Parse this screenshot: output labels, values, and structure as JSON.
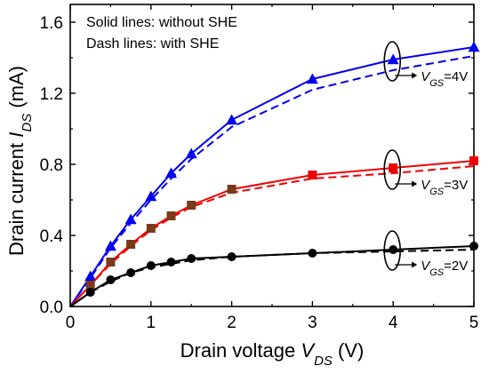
{
  "chart_data": {
    "type": "line",
    "xlabel": {
      "main": "Drain voltage ",
      "var": "V",
      "sub": "DS",
      "unit": " (V)"
    },
    "ylabel": {
      "main": "Drain current ",
      "var": "I",
      "sub": "DS",
      "unit": " (mA)"
    },
    "xlim": [
      0,
      5
    ],
    "ylim": [
      0,
      1.7
    ],
    "xticks": [
      0,
      1,
      2,
      3,
      4,
      5
    ],
    "yticks": [
      0.0,
      0.4,
      0.8,
      1.2,
      1.6
    ],
    "ytick_labels": [
      "0.0",
      "0.4",
      "0.8",
      "1.2",
      "1.6"
    ],
    "legend": [
      "Solid lines: without SHE",
      "Dash lines: with SHE"
    ],
    "series": [
      {
        "group": "VGS=4V",
        "color": "#0000ee",
        "marker": "triangle",
        "without_she": {
          "x": [
            0.25,
            0.5,
            0.75,
            1.0,
            1.25,
            1.5,
            2.0,
            3.0,
            4.0,
            5.0
          ],
          "y": [
            0.17,
            0.34,
            0.49,
            0.62,
            0.75,
            0.86,
            1.05,
            1.28,
            1.39,
            1.46
          ]
        },
        "with_she": {
          "x": [
            0.25,
            0.5,
            0.75,
            1.0,
            1.25,
            1.5,
            2.0,
            3.0,
            4.0,
            5.0
          ],
          "y": [
            0.16,
            0.33,
            0.47,
            0.6,
            0.72,
            0.83,
            1.01,
            1.22,
            1.33,
            1.41
          ]
        }
      },
      {
        "group": "VGS=3V",
        "color": "#ee0000",
        "color_low": "#7a3a1a",
        "marker": "square",
        "without_she": {
          "x": [
            0.25,
            0.5,
            0.75,
            1.0,
            1.25,
            1.5,
            2.0,
            3.0,
            4.0,
            5.0
          ],
          "y": [
            0.12,
            0.25,
            0.35,
            0.44,
            0.51,
            0.57,
            0.66,
            0.74,
            0.78,
            0.82
          ]
        },
        "with_she": {
          "x": [
            0.25,
            0.5,
            0.75,
            1.0,
            1.25,
            1.5,
            2.0,
            3.0,
            4.0,
            5.0
          ],
          "y": [
            0.12,
            0.24,
            0.34,
            0.43,
            0.5,
            0.56,
            0.64,
            0.72,
            0.75,
            0.79
          ]
        }
      },
      {
        "group": "VGS=2V",
        "color": "#000000",
        "marker": "circle",
        "without_she": {
          "x": [
            0.25,
            0.5,
            0.75,
            1.0,
            1.25,
            1.5,
            2.0,
            3.0,
            4.0,
            5.0
          ],
          "y": [
            0.08,
            0.15,
            0.19,
            0.23,
            0.25,
            0.27,
            0.28,
            0.3,
            0.32,
            0.34
          ]
        },
        "with_she": {
          "x": [
            0.25,
            0.5,
            0.75,
            1.0,
            1.25,
            1.5,
            2.0,
            3.0,
            4.0,
            5.0
          ],
          "y": [
            0.08,
            0.14,
            0.19,
            0.22,
            0.24,
            0.26,
            0.28,
            0.3,
            0.31,
            0.32
          ]
        }
      }
    ],
    "annotations": [
      {
        "var": "V",
        "sub": "GS",
        "text": "=4V"
      },
      {
        "var": "V",
        "sub": "GS",
        "text": "=3V"
      },
      {
        "var": "V",
        "sub": "GS",
        "text": "=2V"
      }
    ]
  }
}
